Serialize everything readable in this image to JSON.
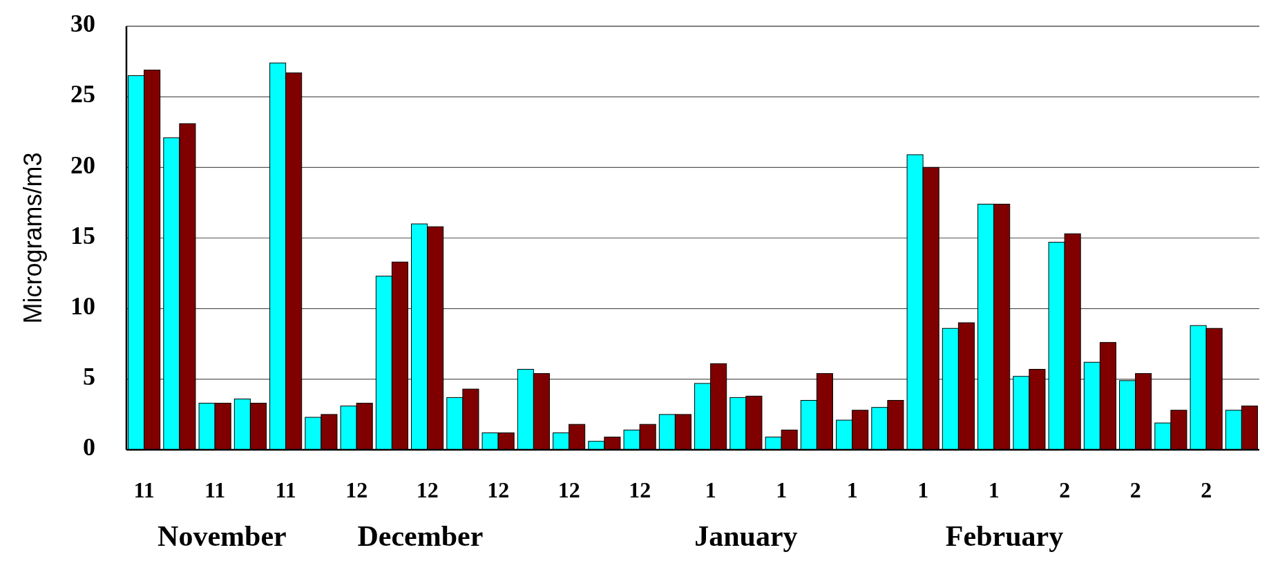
{
  "chart_data": {
    "type": "bar",
    "ylabel": "Micrograms/m3",
    "categories": [
      "11",
      null,
      "11",
      null,
      "11",
      null,
      "12",
      null,
      "12",
      null,
      "12",
      null,
      "12",
      null,
      "12",
      null,
      "1",
      null,
      "1",
      null,
      "1",
      null,
      "1",
      null,
      "1",
      null,
      "2",
      null,
      "2",
      null,
      "2",
      null
    ],
    "series": [
      {
        "color": "#00ffff",
        "values": [
          26.5,
          22.1,
          3.3,
          3.6,
          27.4,
          2.3,
          3.1,
          12.3,
          16.0,
          3.7,
          1.2,
          5.7,
          1.2,
          0.6,
          1.4,
          2.5,
          4.7,
          3.7,
          0.9,
          3.5,
          2.1,
          3.0,
          20.9,
          8.6,
          17.4,
          5.2,
          14.7,
          6.2,
          4.9,
          1.9,
          8.8,
          2.8
        ]
      },
      {
        "color": "#800000",
        "values": [
          26.9,
          23.1,
          3.3,
          3.3,
          26.7,
          2.5,
          3.3,
          13.3,
          15.8,
          4.3,
          1.2,
          5.4,
          1.8,
          0.9,
          1.8,
          2.5,
          6.1,
          3.8,
          1.4,
          5.4,
          2.8,
          3.5,
          20.0,
          9.0,
          17.4,
          5.7,
          15.3,
          7.6,
          5.4,
          2.8,
          8.6,
          3.1
        ]
      }
    ],
    "ylim": [
      0,
      30
    ],
    "yticks": [
      0,
      5,
      10,
      15,
      20,
      25,
      30
    ],
    "grid": "y",
    "annotations": [
      "November",
      "December",
      "January",
      "February"
    ]
  }
}
